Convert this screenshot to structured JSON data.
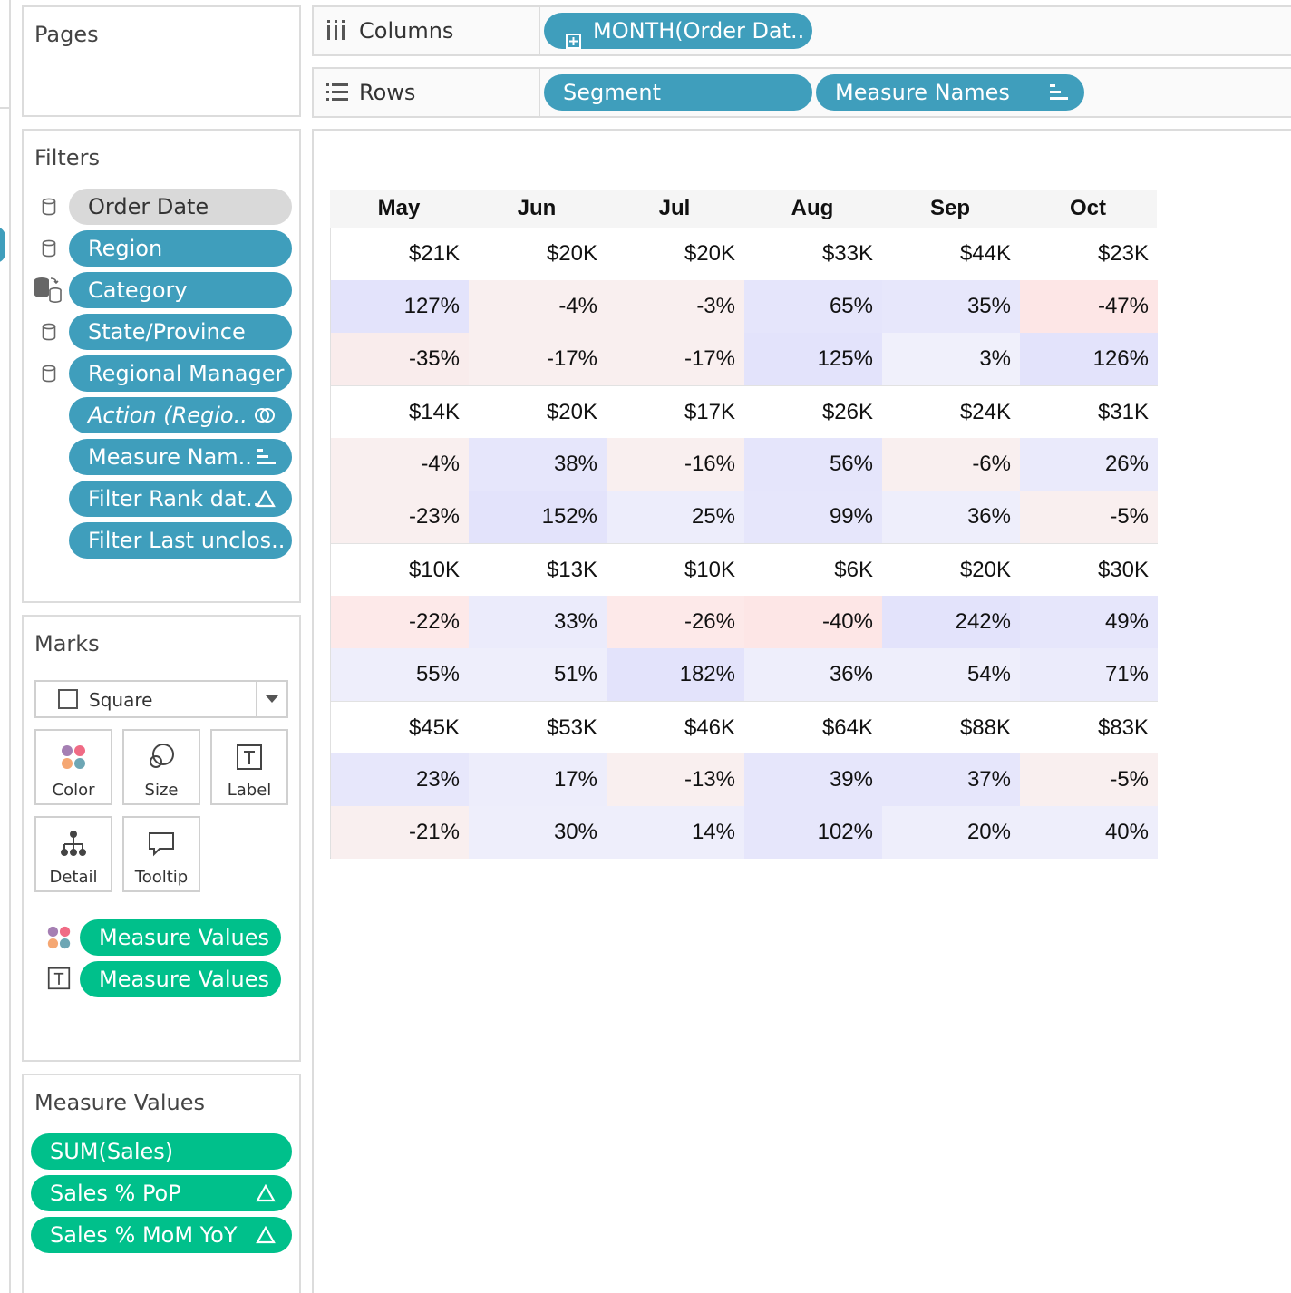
{
  "left_strip": {},
  "pages": {
    "title": "Pages"
  },
  "filters": {
    "title": "Filters",
    "items": [
      {
        "label": "Order Date",
        "style": "gray",
        "icon": "database-icon"
      },
      {
        "label": "Region",
        "style": "blue",
        "icon": "database-icon"
      },
      {
        "label": "Category",
        "style": "blue",
        "icon": "linked-database-icon"
      },
      {
        "label": "State/Province",
        "style": "blue",
        "icon": "database-icon"
      },
      {
        "label": "Regional Manager",
        "style": "blue",
        "icon": "database-icon"
      },
      {
        "label": "Action (Regio..",
        "style": "blue-italic",
        "trail_icon": "action-link-icon"
      },
      {
        "label": "Measure Nam..",
        "style": "blue",
        "trail_icon": "sort-bars-icon"
      },
      {
        "label": "Filter Rank dat..",
        "style": "blue",
        "trail_icon": "delta-icon"
      },
      {
        "label": "Filter Last unclos..",
        "style": "blue"
      }
    ]
  },
  "marks": {
    "title": "Marks",
    "mark_type": "Square",
    "buttons": {
      "color": "Color",
      "size": "Size",
      "label": "Label",
      "detail": "Detail",
      "tooltip": "Tooltip"
    },
    "encodings": [
      {
        "type": "color",
        "label": "Measure Values"
      },
      {
        "type": "label",
        "label": "Measure Values"
      }
    ]
  },
  "measure_values": {
    "title": "Measure Values",
    "items": [
      {
        "label": "SUM(Sales)"
      },
      {
        "label": "Sales % PoP",
        "trail_icon": "delta-icon"
      },
      {
        "label": "Sales % MoM YoY",
        "trail_icon": "delta-icon"
      }
    ]
  },
  "columns_shelf": {
    "label": "Columns",
    "pills": [
      {
        "label": "MONTH(Order Dat.."
      }
    ]
  },
  "rows_shelf": {
    "label": "Rows",
    "pills": [
      {
        "label": "Segment"
      },
      {
        "label": "Measure Names"
      }
    ]
  },
  "table": {
    "months": [
      "May",
      "Jun",
      "Jul",
      "Aug",
      "Sep",
      "Oct"
    ],
    "rows": [
      [
        "$21K",
        "$20K",
        "$20K",
        "$33K",
        "$44K",
        "$23K"
      ],
      [
        "127%",
        "-4%",
        "-3%",
        "65%",
        "35%",
        "-47%"
      ],
      [
        "-35%",
        "-17%",
        "-17%",
        "125%",
        "3%",
        "126%"
      ],
      [
        "$14K",
        "$20K",
        "$17K",
        "$26K",
        "$24K",
        "$31K"
      ],
      [
        "-4%",
        "38%",
        "-16%",
        "56%",
        "-6%",
        "26%"
      ],
      [
        "-23%",
        "152%",
        "25%",
        "99%",
        "36%",
        "-5%"
      ],
      [
        "$10K",
        "$13K",
        "$10K",
        "$6K",
        "$20K",
        "$30K"
      ],
      [
        "-22%",
        "33%",
        "-26%",
        "-40%",
        "242%",
        "49%"
      ],
      [
        "55%",
        "51%",
        "182%",
        "36%",
        "54%",
        "71%"
      ],
      [
        "$45K",
        "$53K",
        "$46K",
        "$64K",
        "$88K",
        "$83K"
      ],
      [
        "23%",
        "17%",
        "-13%",
        "39%",
        "37%",
        "-5%"
      ],
      [
        "-21%",
        "30%",
        "14%",
        "102%",
        "20%",
        "40%"
      ]
    ],
    "colors": [
      [
        "#ffffff",
        "#ffffff",
        "#ffffff",
        "#ffffff",
        "#ffffff",
        "#ffffff"
      ],
      [
        "#e3e3fb",
        "#f9efef",
        "#f9efef",
        "#e5e5fb",
        "#e7e7fb",
        "#fde6e6"
      ],
      [
        "#f9ecec",
        "#f9efef",
        "#f9efef",
        "#e3e3fb",
        "#f0f0fb",
        "#e3e3fb"
      ],
      [
        "#ffffff",
        "#ffffff",
        "#ffffff",
        "#ffffff",
        "#ffffff",
        "#ffffff"
      ],
      [
        "#f9efef",
        "#e6e6fb",
        "#f9efef",
        "#e5e5fb",
        "#f9efef",
        "#eaeafb"
      ],
      [
        "#f9efef",
        "#e3e3fb",
        "#ededfb",
        "#e6e6fb",
        "#eeeefb",
        "#f9efef"
      ],
      [
        "#ffffff",
        "#ffffff",
        "#ffffff",
        "#ffffff",
        "#ffffff",
        "#ffffff"
      ],
      [
        "#fde9e9",
        "#ebebfb",
        "#fde9e9",
        "#fde6e6",
        "#e3e3fb",
        "#e6e6fb"
      ],
      [
        "#eeeefb",
        "#eeeefb",
        "#e3e3fb",
        "#eeeefb",
        "#eeeefb",
        "#ebebfb"
      ],
      [
        "#ffffff",
        "#ffffff",
        "#ffffff",
        "#ffffff",
        "#ffffff",
        "#ffffff"
      ],
      [
        "#e7e7fb",
        "#ededfb",
        "#f9efef",
        "#e6e6fb",
        "#e6e6fb",
        "#f9efef"
      ],
      [
        "#f9efef",
        "#eeeefb",
        "#eeeefb",
        "#e6e6fb",
        "#eeeefb",
        "#eeeefb"
      ]
    ]
  }
}
